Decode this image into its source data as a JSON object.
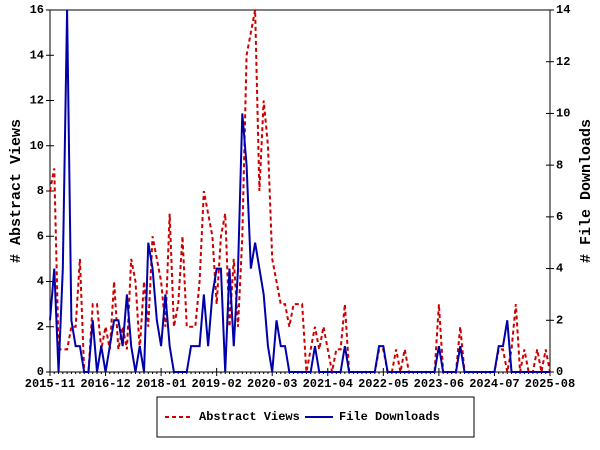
{
  "chart_data": {
    "type": "line",
    "categories": [
      "2015-11",
      "2015-12",
      "2016-01",
      "2016-02",
      "2016-03",
      "2016-04",
      "2016-05",
      "2016-06",
      "2016-07",
      "2016-08",
      "2016-09",
      "2016-10",
      "2016-11",
      "2016-12",
      "2017-01",
      "2017-02",
      "2017-03",
      "2017-04",
      "2017-05",
      "2017-06",
      "2017-07",
      "2017-08",
      "2017-09",
      "2017-10",
      "2017-11",
      "2017-12",
      "2018-01",
      "2018-02",
      "2018-03",
      "2018-04",
      "2018-05",
      "2018-06",
      "2018-07",
      "2018-08",
      "2018-09",
      "2018-10",
      "2018-11",
      "2018-12",
      "2019-01",
      "2019-02",
      "2019-03",
      "2019-04",
      "2019-05",
      "2019-06",
      "2019-07",
      "2019-08",
      "2019-09",
      "2019-10",
      "2019-11",
      "2019-12",
      "2020-01",
      "2020-02",
      "2020-03",
      "2020-04",
      "2020-05",
      "2020-06",
      "2020-07",
      "2020-08",
      "2020-09",
      "2020-10",
      "2020-11",
      "2020-12",
      "2021-01",
      "2021-02",
      "2021-03",
      "2021-04",
      "2021-05",
      "2021-06",
      "2021-07",
      "2021-08",
      "2021-09",
      "2021-10",
      "2021-11",
      "2021-12",
      "2022-01",
      "2022-02",
      "2022-03",
      "2022-04",
      "2022-05",
      "2022-06",
      "2022-07",
      "2022-08",
      "2022-09",
      "2022-10",
      "2022-11",
      "2022-12",
      "2023-01",
      "2023-02",
      "2023-03",
      "2023-04",
      "2023-05",
      "2023-06",
      "2023-07",
      "2023-08",
      "2023-09",
      "2023-10",
      "2023-11",
      "2023-12",
      "2024-01",
      "2024-02",
      "2024-03",
      "2024-04",
      "2024-05",
      "2024-06",
      "2024-07",
      "2024-08",
      "2024-09",
      "2024-10",
      "2024-11",
      "2024-12",
      "2025-01",
      "2025-02",
      "2025-03",
      "2025-04",
      "2025-05",
      "2025-06",
      "2025-07",
      "2025-08"
    ],
    "ylabel": "# Abstract Views",
    "y2label": "# File Downloads",
    "ylim": [
      0,
      16
    ],
    "yticks": [
      0,
      2,
      4,
      6,
      8,
      10,
      12,
      14,
      16
    ],
    "y2lim": [
      0,
      14
    ],
    "y2ticks": [
      0,
      2,
      4,
      6,
      8,
      10,
      12,
      14
    ],
    "series": [
      {
        "name": "Abstract Views",
        "color": "#cc0000",
        "dashed": true,
        "values": [
          8,
          9,
          1,
          1,
          1,
          2,
          2,
          5,
          0,
          0,
          3,
          3,
          1,
          2,
          1,
          4,
          1,
          2,
          1,
          5,
          4,
          1,
          4,
          2,
          6,
          5,
          4,
          2,
          7,
          2,
          3,
          6,
          2,
          2,
          2,
          4,
          8,
          7,
          6,
          3,
          6,
          7,
          2,
          5,
          2,
          6,
          14,
          15,
          16,
          8,
          12,
          10,
          5,
          4,
          3,
          3,
          2,
          3,
          3,
          3,
          0,
          1,
          2,
          1,
          2,
          1,
          0,
          1,
          1,
          3,
          0,
          0,
          0,
          0,
          0,
          0,
          0,
          1,
          1,
          0,
          0,
          1,
          0,
          1,
          0,
          0,
          0,
          0,
          0,
          0,
          0,
          3,
          0,
          0,
          0,
          0,
          2,
          0,
          0,
          0,
          0,
          0,
          0,
          0,
          0,
          1,
          1,
          0,
          1,
          3,
          0,
          1,
          0,
          0,
          1,
          0,
          1,
          0
        ]
      },
      {
        "name": "File Downloads",
        "color": "#0000aa",
        "dashed": false,
        "axis": "y2",
        "values": [
          2,
          4,
          0,
          4,
          14,
          2,
          1,
          1,
          0,
          0,
          2,
          0,
          1,
          0,
          1,
          2,
          2,
          1,
          3,
          1,
          0,
          1,
          0,
          5,
          4,
          2,
          1,
          3,
          1,
          0,
          0,
          0,
          0,
          1,
          1,
          1,
          3,
          1,
          3,
          4,
          4,
          0,
          4,
          1,
          4,
          10,
          8,
          4,
          5,
          4,
          3,
          1,
          0,
          2,
          1,
          1,
          0,
          0,
          0,
          0,
          0,
          0,
          1,
          0,
          0,
          0,
          0,
          0,
          0,
          1,
          0,
          0,
          0,
          0,
          0,
          0,
          0,
          1,
          1,
          0,
          0,
          0,
          0,
          0,
          0,
          0,
          0,
          0,
          0,
          0,
          0,
          1,
          0,
          0,
          0,
          0,
          1,
          0,
          0,
          0,
          0,
          0,
          0,
          0,
          0,
          1,
          1,
          2,
          0,
          0,
          0,
          0,
          0,
          0,
          0,
          0,
          0,
          0
        ]
      }
    ]
  }
}
